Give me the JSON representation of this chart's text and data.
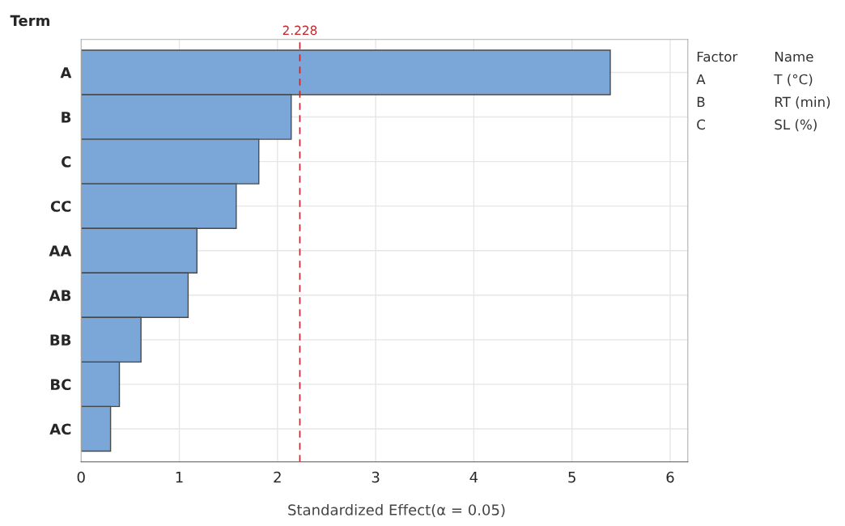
{
  "chart_data": {
    "type": "bar",
    "orientation": "horizontal",
    "ylabel": "Term",
    "xlabel": "Standardized Effect(α = 0.05)",
    "categories": [
      "A",
      "B",
      "C",
      "CC",
      "AA",
      "AB",
      "BB",
      "BC",
      "AC"
    ],
    "values": [
      5.39,
      2.14,
      1.81,
      1.58,
      1.18,
      1.09,
      0.61,
      0.39,
      0.3
    ],
    "color": "#7ba6d8",
    "xlim": [
      0,
      6.18
    ],
    "xticks": [
      0,
      1,
      2,
      3,
      4,
      5,
      6
    ],
    "grid": true,
    "ref_lines": [
      {
        "axis": "x",
        "value": 2.228,
        "label": "2.228",
        "color": "#c0282d",
        "line_style": "dashed"
      }
    ],
    "annotations": [
      "Factor",
      "Name",
      "A",
      "T (°C)",
      "B",
      "RT (min)",
      "C",
      "SL (%)"
    ]
  }
}
